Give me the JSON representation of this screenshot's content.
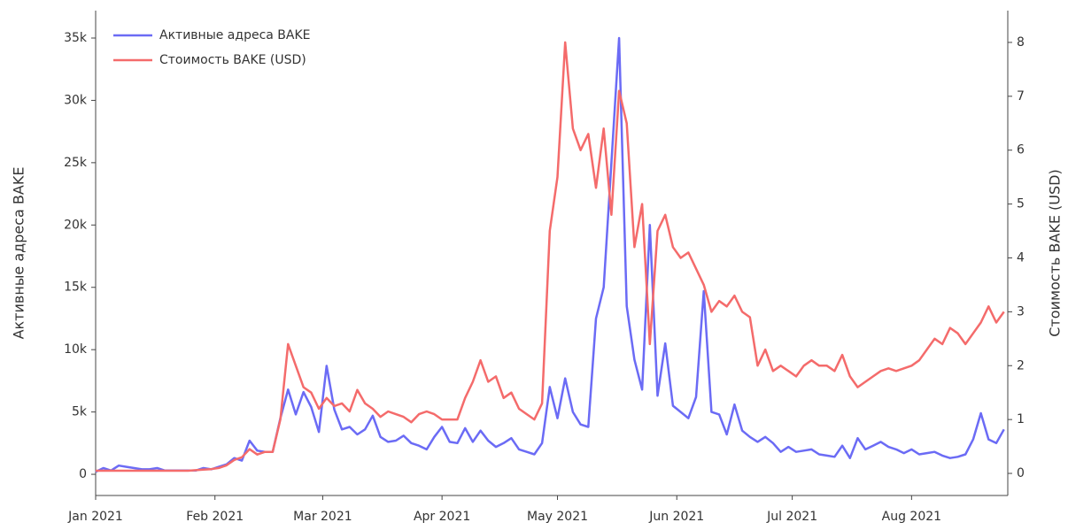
{
  "chart_data": {
    "type": "line",
    "x": [
      0,
      2,
      4,
      6,
      8,
      10,
      12,
      14,
      16,
      18,
      20,
      22,
      24,
      26,
      28,
      30,
      32,
      34,
      36,
      38,
      40,
      42,
      44,
      46,
      48,
      50,
      52,
      54,
      56,
      58,
      60,
      62,
      64,
      66,
      68,
      70,
      72,
      74,
      76,
      78,
      80,
      82,
      84,
      86,
      88,
      90,
      92,
      94,
      96,
      98,
      100,
      102,
      104,
      106,
      108,
      110,
      112,
      114,
      116,
      118,
      120,
      122,
      124,
      126,
      128,
      130,
      132,
      134,
      136,
      138,
      140,
      142,
      144,
      146,
      148,
      150,
      152,
      154,
      156,
      158,
      160,
      162,
      164,
      166,
      168,
      170,
      172,
      174,
      176,
      178,
      180,
      182,
      184,
      186,
      188,
      190,
      192,
      194,
      196,
      198,
      200,
      202,
      204,
      206,
      208,
      210,
      212,
      214,
      216,
      218,
      220,
      222,
      224,
      226,
      228,
      230,
      232,
      234,
      236
    ],
    "xlim": [
      0,
      237
    ],
    "xticks": [
      {
        "value": 0,
        "label": "Jan 2021"
      },
      {
        "value": 31,
        "label": "Feb 2021"
      },
      {
        "value": 59,
        "label": "Mar 2021"
      },
      {
        "value": 90,
        "label": "Apr 2021"
      },
      {
        "value": 120,
        "label": "May 2021"
      },
      {
        "value": 151,
        "label": "Jun 2021"
      },
      {
        "value": 181,
        "label": "Jul 2021"
      },
      {
        "value": 212,
        "label": "Aug 2021"
      }
    ],
    "ylabel": "Активные адреса BAKE",
    "y2label": "Стоимость BAKE (USD)",
    "ylim": [
      -1700,
      37200
    ],
    "yticks": [
      0,
      {
        "value": 5000,
        "label": "5k"
      },
      {
        "value": 10000,
        "label": "10k"
      },
      {
        "value": 15000,
        "label": "15k"
      },
      {
        "value": 20000,
        "label": "20k"
      },
      {
        "value": 25000,
        "label": "25k"
      },
      {
        "value": 30000,
        "label": "30k"
      },
      {
        "value": 35000,
        "label": "35k"
      }
    ],
    "y2lim": [
      -0.41,
      8.59
    ],
    "y2ticks": [
      0,
      1,
      2,
      3,
      4,
      5,
      6,
      7,
      8
    ],
    "legend": "top-left",
    "series": [
      {
        "name": "Активные адреса BAKE",
        "color": "#6b6bf5",
        "axis": "y",
        "values": [
          200,
          500,
          300,
          700,
          600,
          500,
          400,
          400,
          500,
          300,
          300,
          300,
          300,
          300,
          500,
          400,
          600,
          800,
          1300,
          1100,
          2700,
          1900,
          1800,
          1800,
          4500,
          6800,
          4800,
          6600,
          5400,
          3400,
          8700,
          5200,
          3600,
          3800,
          3200,
          3600,
          4700,
          3000,
          2600,
          2700,
          3100,
          2500,
          2300,
          2000,
          3000,
          3800,
          2600,
          2500,
          3700,
          2600,
          3500,
          2700,
          2200,
          2500,
          2900,
          2000,
          1800,
          1600,
          2500,
          7000,
          4500,
          7700,
          5000,
          4000,
          3800,
          12500,
          15000,
          25000,
          35000,
          13500,
          9200,
          6800,
          20000,
          6300,
          10500,
          5500,
          5000,
          4500,
          6200,
          14700,
          5000,
          4800,
          3200,
          5600,
          3500,
          3000,
          2600,
          3000,
          2500,
          1800,
          2200,
          1800,
          1900,
          2000,
          1600,
          1500,
          1400,
          2300,
          1300,
          2900,
          2000,
          2300,
          2600,
          2200,
          2000,
          1700,
          2000,
          1600,
          1700,
          1800,
          1500,
          1300,
          1400,
          1600,
          2800,
          4900,
          2800,
          2500,
          3600
        ]
      },
      {
        "name": "Стоимость BAKE (USD)",
        "color": "#f46b6b",
        "axis": "y2",
        "values": [
          0.05,
          0.05,
          0.05,
          0.05,
          0.05,
          0.05,
          0.05,
          0.05,
          0.05,
          0.05,
          0.05,
          0.05,
          0.05,
          0.06,
          0.07,
          0.08,
          0.1,
          0.15,
          0.25,
          0.3,
          0.45,
          0.35,
          0.4,
          0.4,
          1.0,
          2.4,
          2.0,
          1.6,
          1.5,
          1.2,
          1.4,
          1.25,
          1.3,
          1.15,
          1.55,
          1.3,
          1.2,
          1.05,
          1.15,
          1.1,
          1.05,
          0.95,
          1.1,
          1.15,
          1.1,
          1.0,
          1.0,
          1.0,
          1.4,
          1.7,
          2.1,
          1.7,
          1.8,
          1.4,
          1.5,
          1.2,
          1.1,
          1.0,
          1.3,
          4.5,
          5.5,
          8.0,
          6.4,
          6.0,
          6.3,
          5.3,
          6.4,
          4.8,
          7.1,
          6.5,
          4.2,
          5.0,
          2.4,
          4.5,
          4.8,
          4.2,
          4.0,
          4.1,
          3.8,
          3.5,
          3.0,
          3.2,
          3.1,
          3.3,
          3.0,
          2.9,
          2.0,
          2.3,
          1.9,
          2.0,
          1.9,
          1.8,
          2.0,
          2.1,
          2.0,
          2.0,
          1.9,
          2.2,
          1.8,
          1.6,
          1.7,
          1.8,
          1.9,
          1.95,
          1.9,
          1.95,
          2.0,
          2.1,
          2.3,
          2.5,
          2.4,
          2.7,
          2.6,
          2.4,
          2.6,
          2.8,
          3.1,
          2.8,
          3.0
        ]
      }
    ]
  }
}
